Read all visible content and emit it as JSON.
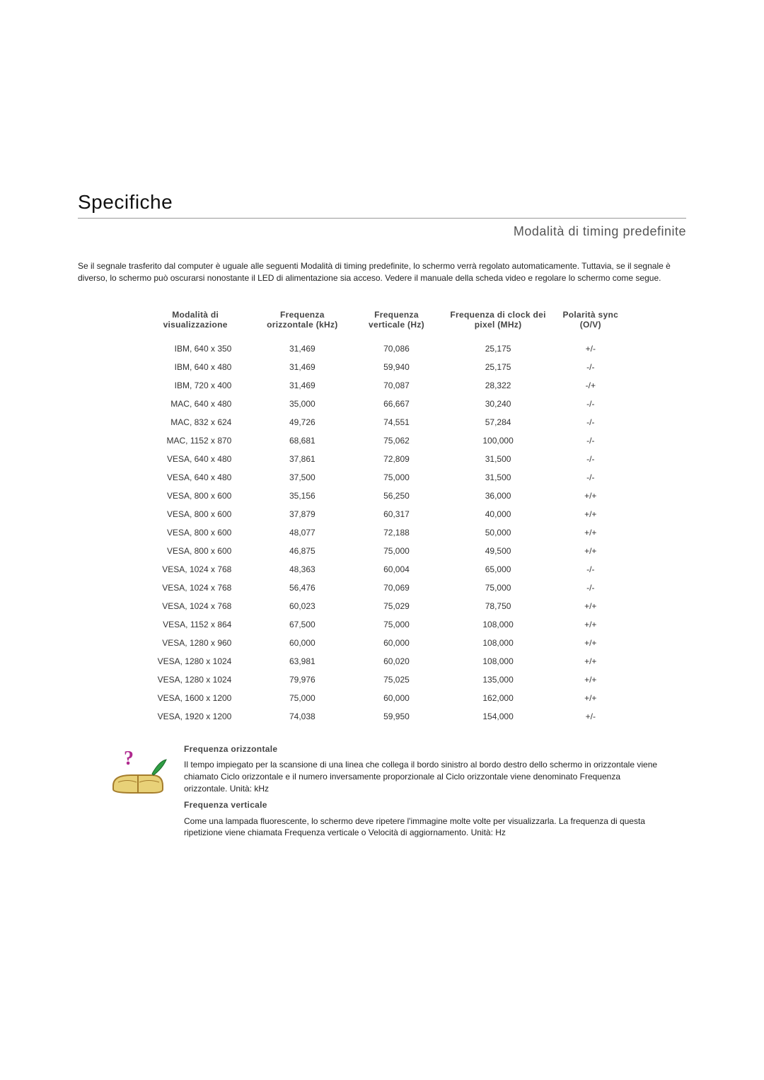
{
  "header": {
    "title": "Specifiche",
    "subtitle": "Modalità di timing predefinite"
  },
  "intro": "Se il segnale trasferito dal computer è uguale alle seguenti Modalità di timing predefinite, lo schermo verrà regolato automaticamente. Tuttavia, se il segnale è diverso, lo schermo può oscurarsi nonostante il LED di alimentazione sia acceso. Vedere il manuale della scheda video e regolare lo schermo come segue.",
  "table": {
    "columns": [
      "Modalità di visualizzazione",
      "Frequenza orizzontale (kHz)",
      "Frequenza verticale (Hz)",
      "Frequenza di clock dei pixel (MHz)",
      "Polarità sync (O/V)"
    ],
    "rows": [
      [
        "IBM, 640 x 350",
        "31,469",
        "70,086",
        "25,175",
        "+/-"
      ],
      [
        "IBM, 640 x 480",
        "31,469",
        "59,940",
        "25,175",
        "-/-"
      ],
      [
        "IBM, 720 x 400",
        "31,469",
        "70,087",
        "28,322",
        "-/+"
      ],
      [
        "MAC, 640 x 480",
        "35,000",
        "66,667",
        "30,240",
        "-/-"
      ],
      [
        "MAC, 832 x 624",
        "49,726",
        "74,551",
        "57,284",
        "-/-"
      ],
      [
        "MAC, 1152 x 870",
        "68,681",
        "75,062",
        "100,000",
        "-/-"
      ],
      [
        "VESA, 640 x 480",
        "37,861",
        "72,809",
        "31,500",
        "-/-"
      ],
      [
        "VESA, 640 x 480",
        "37,500",
        "75,000",
        "31,500",
        "-/-"
      ],
      [
        "VESA, 800 x 600",
        "35,156",
        "56,250",
        "36,000",
        "+/+"
      ],
      [
        "VESA, 800 x 600",
        "37,879",
        "60,317",
        "40,000",
        "+/+"
      ],
      [
        "VESA, 800 x 600",
        "48,077",
        "72,188",
        "50,000",
        "+/+"
      ],
      [
        "VESA, 800 x 600",
        "46,875",
        "75,000",
        "49,500",
        "+/+"
      ],
      [
        "VESA, 1024 x 768",
        "48,363",
        "60,004",
        "65,000",
        "-/-"
      ],
      [
        "VESA, 1024 x 768",
        "56,476",
        "70,069",
        "75,000",
        "-/-"
      ],
      [
        "VESA, 1024 x 768",
        "60,023",
        "75,029",
        "78,750",
        "+/+"
      ],
      [
        "VESA, 1152 x 864",
        "67,500",
        "75,000",
        "108,000",
        "+/+"
      ],
      [
        "VESA, 1280 x 960",
        "60,000",
        "60,000",
        "108,000",
        "+/+"
      ],
      [
        "VESA, 1280 x 1024",
        "63,981",
        "60,020",
        "108,000",
        "+/+"
      ],
      [
        "VESA, 1280 x 1024",
        "79,976",
        "75,025",
        "135,000",
        "+/+"
      ],
      [
        "VESA, 1600 x 1200",
        "75,000",
        "60,000",
        "162,000",
        "+/+"
      ],
      [
        "VESA, 1920 x 1200",
        "74,038",
        "59,950",
        "154,000",
        "+/-"
      ]
    ]
  },
  "definitions": {
    "hfreq_term": "Frequenza orizzontale",
    "hfreq_body": "Il tempo impiegato per la scansione di una linea che collega il bordo sinistro al bordo destro dello schermo in orizzontale viene chiamato Ciclo orizzontale e il numero inversamente proporzionale al Ciclo orizzontale viene denominato Frequenza orizzontale. Unità: kHz",
    "vfreq_term": "Frequenza verticale",
    "vfreq_body": "Come una lampada fluorescente, lo schermo deve ripetere l'immagine molte volte per visualizzarla. La frequenza di questa ripetizione viene chiamata Frequenza verticale o Velocità di aggiornamento. Unità: Hz"
  },
  "icon_colors": {
    "book_fill": "#e8d178",
    "book_stroke": "#a57d2c",
    "leaf_fill": "#2f9e44",
    "q_fill": "#b02a8f"
  }
}
